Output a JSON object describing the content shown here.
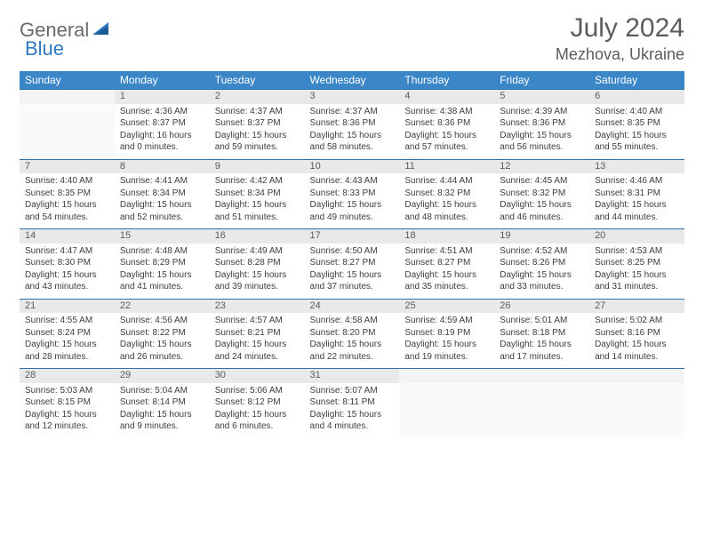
{
  "logo": {
    "general": "General",
    "blue": "Blue"
  },
  "title": "July 2024",
  "location": "Mezhova, Ukraine",
  "colors": {
    "header_bg": "#3b86c7",
    "header_text": "#ffffff",
    "daynum_bg": "#e9e9e9",
    "border": "#2f6ea8",
    "text": "#3d3d3d",
    "title_text": "#5c5c5c"
  },
  "day_headers": [
    "Sunday",
    "Monday",
    "Tuesday",
    "Wednesday",
    "Thursday",
    "Friday",
    "Saturday"
  ],
  "weeks": [
    {
      "nums": [
        "",
        "1",
        "2",
        "3",
        "4",
        "5",
        "6"
      ],
      "cells": [
        null,
        {
          "sunrise": "Sunrise: 4:36 AM",
          "sunset": "Sunset: 8:37 PM",
          "day1": "Daylight: 16 hours",
          "day2": "and 0 minutes."
        },
        {
          "sunrise": "Sunrise: 4:37 AM",
          "sunset": "Sunset: 8:37 PM",
          "day1": "Daylight: 15 hours",
          "day2": "and 59 minutes."
        },
        {
          "sunrise": "Sunrise: 4:37 AM",
          "sunset": "Sunset: 8:36 PM",
          "day1": "Daylight: 15 hours",
          "day2": "and 58 minutes."
        },
        {
          "sunrise": "Sunrise: 4:38 AM",
          "sunset": "Sunset: 8:36 PM",
          "day1": "Daylight: 15 hours",
          "day2": "and 57 minutes."
        },
        {
          "sunrise": "Sunrise: 4:39 AM",
          "sunset": "Sunset: 8:36 PM",
          "day1": "Daylight: 15 hours",
          "day2": "and 56 minutes."
        },
        {
          "sunrise": "Sunrise: 4:40 AM",
          "sunset": "Sunset: 8:35 PM",
          "day1": "Daylight: 15 hours",
          "day2": "and 55 minutes."
        }
      ]
    },
    {
      "nums": [
        "7",
        "8",
        "9",
        "10",
        "11",
        "12",
        "13"
      ],
      "cells": [
        {
          "sunrise": "Sunrise: 4:40 AM",
          "sunset": "Sunset: 8:35 PM",
          "day1": "Daylight: 15 hours",
          "day2": "and 54 minutes."
        },
        {
          "sunrise": "Sunrise: 4:41 AM",
          "sunset": "Sunset: 8:34 PM",
          "day1": "Daylight: 15 hours",
          "day2": "and 52 minutes."
        },
        {
          "sunrise": "Sunrise: 4:42 AM",
          "sunset": "Sunset: 8:34 PM",
          "day1": "Daylight: 15 hours",
          "day2": "and 51 minutes."
        },
        {
          "sunrise": "Sunrise: 4:43 AM",
          "sunset": "Sunset: 8:33 PM",
          "day1": "Daylight: 15 hours",
          "day2": "and 49 minutes."
        },
        {
          "sunrise": "Sunrise: 4:44 AM",
          "sunset": "Sunset: 8:32 PM",
          "day1": "Daylight: 15 hours",
          "day2": "and 48 minutes."
        },
        {
          "sunrise": "Sunrise: 4:45 AM",
          "sunset": "Sunset: 8:32 PM",
          "day1": "Daylight: 15 hours",
          "day2": "and 46 minutes."
        },
        {
          "sunrise": "Sunrise: 4:46 AM",
          "sunset": "Sunset: 8:31 PM",
          "day1": "Daylight: 15 hours",
          "day2": "and 44 minutes."
        }
      ]
    },
    {
      "nums": [
        "14",
        "15",
        "16",
        "17",
        "18",
        "19",
        "20"
      ],
      "cells": [
        {
          "sunrise": "Sunrise: 4:47 AM",
          "sunset": "Sunset: 8:30 PM",
          "day1": "Daylight: 15 hours",
          "day2": "and 43 minutes."
        },
        {
          "sunrise": "Sunrise: 4:48 AM",
          "sunset": "Sunset: 8:29 PM",
          "day1": "Daylight: 15 hours",
          "day2": "and 41 minutes."
        },
        {
          "sunrise": "Sunrise: 4:49 AM",
          "sunset": "Sunset: 8:28 PM",
          "day1": "Daylight: 15 hours",
          "day2": "and 39 minutes."
        },
        {
          "sunrise": "Sunrise: 4:50 AM",
          "sunset": "Sunset: 8:27 PM",
          "day1": "Daylight: 15 hours",
          "day2": "and 37 minutes."
        },
        {
          "sunrise": "Sunrise: 4:51 AM",
          "sunset": "Sunset: 8:27 PM",
          "day1": "Daylight: 15 hours",
          "day2": "and 35 minutes."
        },
        {
          "sunrise": "Sunrise: 4:52 AM",
          "sunset": "Sunset: 8:26 PM",
          "day1": "Daylight: 15 hours",
          "day2": "and 33 minutes."
        },
        {
          "sunrise": "Sunrise: 4:53 AM",
          "sunset": "Sunset: 8:25 PM",
          "day1": "Daylight: 15 hours",
          "day2": "and 31 minutes."
        }
      ]
    },
    {
      "nums": [
        "21",
        "22",
        "23",
        "24",
        "25",
        "26",
        "27"
      ],
      "cells": [
        {
          "sunrise": "Sunrise: 4:55 AM",
          "sunset": "Sunset: 8:24 PM",
          "day1": "Daylight: 15 hours",
          "day2": "and 28 minutes."
        },
        {
          "sunrise": "Sunrise: 4:56 AM",
          "sunset": "Sunset: 8:22 PM",
          "day1": "Daylight: 15 hours",
          "day2": "and 26 minutes."
        },
        {
          "sunrise": "Sunrise: 4:57 AM",
          "sunset": "Sunset: 8:21 PM",
          "day1": "Daylight: 15 hours",
          "day2": "and 24 minutes."
        },
        {
          "sunrise": "Sunrise: 4:58 AM",
          "sunset": "Sunset: 8:20 PM",
          "day1": "Daylight: 15 hours",
          "day2": "and 22 minutes."
        },
        {
          "sunrise": "Sunrise: 4:59 AM",
          "sunset": "Sunset: 8:19 PM",
          "day1": "Daylight: 15 hours",
          "day2": "and 19 minutes."
        },
        {
          "sunrise": "Sunrise: 5:01 AM",
          "sunset": "Sunset: 8:18 PM",
          "day1": "Daylight: 15 hours",
          "day2": "and 17 minutes."
        },
        {
          "sunrise": "Sunrise: 5:02 AM",
          "sunset": "Sunset: 8:16 PM",
          "day1": "Daylight: 15 hours",
          "day2": "and 14 minutes."
        }
      ]
    },
    {
      "nums": [
        "28",
        "29",
        "30",
        "31",
        "",
        "",
        ""
      ],
      "cells": [
        {
          "sunrise": "Sunrise: 5:03 AM",
          "sunset": "Sunset: 8:15 PM",
          "day1": "Daylight: 15 hours",
          "day2": "and 12 minutes."
        },
        {
          "sunrise": "Sunrise: 5:04 AM",
          "sunset": "Sunset: 8:14 PM",
          "day1": "Daylight: 15 hours",
          "day2": "and 9 minutes."
        },
        {
          "sunrise": "Sunrise: 5:06 AM",
          "sunset": "Sunset: 8:12 PM",
          "day1": "Daylight: 15 hours",
          "day2": "and 6 minutes."
        },
        {
          "sunrise": "Sunrise: 5:07 AM",
          "sunset": "Sunset: 8:11 PM",
          "day1": "Daylight: 15 hours",
          "day2": "and 4 minutes."
        },
        null,
        null,
        null
      ]
    }
  ]
}
